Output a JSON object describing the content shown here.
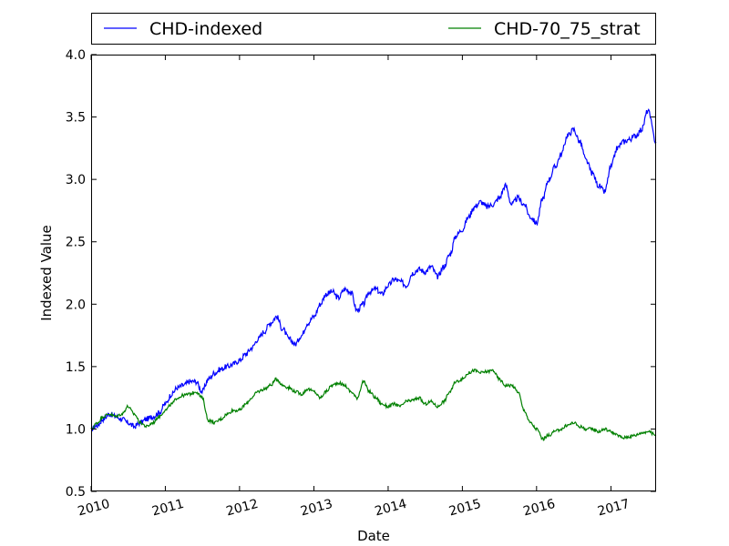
{
  "chart_data": {
    "type": "line",
    "xlabel": "Date",
    "ylabel": "Indexed Value",
    "xlim": [
      "2010-01-01",
      "2017-08-11"
    ],
    "ylim": [
      0.5,
      4.0
    ],
    "x_ticks": [
      "2010",
      "2011",
      "2012",
      "2013",
      "2014",
      "2015",
      "2016",
      "2017"
    ],
    "y_ticks": [
      "0.5",
      "1.0",
      "1.5",
      "2.0",
      "2.5",
      "3.0",
      "3.5",
      "4.0"
    ],
    "x_tick_rotation": "slanted",
    "grid": false,
    "legend": {
      "placement": "top, above plot, two columns"
    },
    "series": [
      {
        "name": "CHD-indexed",
        "color": "#0000ff",
        "x": [
          "2010-01-01",
          "2010-02-01",
          "2010-03-01",
          "2010-04-01",
          "2010-05-01",
          "2010-06-01",
          "2010-07-01",
          "2010-08-01",
          "2010-09-01",
          "2010-10-01",
          "2010-11-01",
          "2010-12-01",
          "2011-01-01",
          "2011-02-01",
          "2011-03-01",
          "2011-04-01",
          "2011-05-01",
          "2011-06-01",
          "2011-07-01",
          "2011-08-01",
          "2011-09-01",
          "2011-10-01",
          "2011-11-01",
          "2011-12-01",
          "2012-01-01",
          "2012-02-01",
          "2012-03-01",
          "2012-04-01",
          "2012-05-01",
          "2012-06-01",
          "2012-07-01",
          "2012-08-01",
          "2012-09-01",
          "2012-10-01",
          "2012-11-01",
          "2012-12-01",
          "2013-01-01",
          "2013-02-01",
          "2013-03-01",
          "2013-04-01",
          "2013-05-01",
          "2013-06-01",
          "2013-07-01",
          "2013-08-01",
          "2013-09-01",
          "2013-10-01",
          "2013-11-01",
          "2013-12-01",
          "2014-01-01",
          "2014-02-01",
          "2014-03-01",
          "2014-04-01",
          "2014-05-01",
          "2014-06-01",
          "2014-07-01",
          "2014-08-01",
          "2014-09-01",
          "2014-10-01",
          "2014-11-01",
          "2014-12-01",
          "2015-01-01",
          "2015-02-01",
          "2015-03-01",
          "2015-04-01",
          "2015-05-01",
          "2015-06-01",
          "2015-07-01",
          "2015-08-01",
          "2015-09-01",
          "2015-10-01",
          "2015-11-01",
          "2015-12-01",
          "2016-01-01",
          "2016-02-01",
          "2016-03-01",
          "2016-04-01",
          "2016-05-01",
          "2016-06-01",
          "2016-07-01",
          "2016-08-01",
          "2016-09-01",
          "2016-10-01",
          "2016-11-01",
          "2016-12-01",
          "2017-01-01",
          "2017-02-01",
          "2017-03-01",
          "2017-04-01",
          "2017-05-01",
          "2017-06-01",
          "2017-07-01",
          "2017-08-11"
        ],
        "y": [
          1.0,
          1.03,
          1.08,
          1.12,
          1.1,
          1.08,
          1.05,
          1.02,
          1.05,
          1.08,
          1.1,
          1.13,
          1.2,
          1.28,
          1.33,
          1.35,
          1.38,
          1.38,
          1.3,
          1.4,
          1.45,
          1.48,
          1.5,
          1.52,
          1.55,
          1.6,
          1.65,
          1.72,
          1.78,
          1.85,
          1.9,
          1.8,
          1.72,
          1.68,
          1.75,
          1.85,
          1.9,
          2.0,
          2.08,
          2.1,
          2.05,
          2.12,
          2.1,
          1.95,
          2.0,
          2.1,
          2.12,
          2.08,
          2.15,
          2.2,
          2.18,
          2.15,
          2.25,
          2.28,
          2.26,
          2.3,
          2.22,
          2.3,
          2.4,
          2.55,
          2.6,
          2.7,
          2.78,
          2.82,
          2.78,
          2.8,
          2.85,
          2.95,
          2.8,
          2.85,
          2.8,
          2.7,
          2.65,
          2.85,
          3.0,
          3.1,
          3.2,
          3.35,
          3.4,
          3.3,
          3.15,
          3.05,
          2.95,
          2.9,
          3.1,
          3.25,
          3.3,
          3.32,
          3.35,
          3.4,
          3.55,
          3.3
        ]
      },
      {
        "name": "CHD-70_75_strat",
        "color": "#008000",
        "x": [
          "2010-01-01",
          "2010-02-01",
          "2010-03-01",
          "2010-04-01",
          "2010-05-01",
          "2010-06-01",
          "2010-07-01",
          "2010-08-01",
          "2010-09-01",
          "2010-10-01",
          "2010-11-01",
          "2010-12-01",
          "2011-01-01",
          "2011-02-01",
          "2011-03-01",
          "2011-04-01",
          "2011-05-01",
          "2011-06-01",
          "2011-07-01",
          "2011-08-01",
          "2011-09-01",
          "2011-10-01",
          "2011-11-01",
          "2011-12-01",
          "2012-01-01",
          "2012-02-01",
          "2012-03-01",
          "2012-04-01",
          "2012-05-01",
          "2012-06-01",
          "2012-07-01",
          "2012-08-01",
          "2012-09-01",
          "2012-10-01",
          "2012-11-01",
          "2012-12-01",
          "2013-01-01",
          "2013-02-01",
          "2013-03-01",
          "2013-04-01",
          "2013-05-01",
          "2013-06-01",
          "2013-07-01",
          "2013-08-01",
          "2013-09-01",
          "2013-10-01",
          "2013-11-01",
          "2013-12-01",
          "2014-01-01",
          "2014-02-01",
          "2014-03-01",
          "2014-04-01",
          "2014-05-01",
          "2014-06-01",
          "2014-07-01",
          "2014-08-01",
          "2014-09-01",
          "2014-10-01",
          "2014-11-01",
          "2014-12-01",
          "2015-01-01",
          "2015-02-01",
          "2015-03-01",
          "2015-04-01",
          "2015-05-01",
          "2015-06-01",
          "2015-07-01",
          "2015-08-01",
          "2015-09-01",
          "2015-10-01",
          "2015-11-01",
          "2015-12-01",
          "2016-01-01",
          "2016-02-01",
          "2016-03-01",
          "2016-04-01",
          "2016-05-01",
          "2016-06-01",
          "2016-07-01",
          "2016-08-01",
          "2016-09-01",
          "2016-10-01",
          "2016-11-01",
          "2016-12-01",
          "2017-01-01",
          "2017-02-01",
          "2017-03-01",
          "2017-04-01",
          "2017-05-01",
          "2017-06-01",
          "2017-07-01",
          "2017-08-11"
        ],
        "y": [
          1.0,
          1.05,
          1.1,
          1.12,
          1.1,
          1.12,
          1.18,
          1.12,
          1.05,
          1.02,
          1.05,
          1.1,
          1.15,
          1.2,
          1.25,
          1.27,
          1.28,
          1.3,
          1.25,
          1.07,
          1.05,
          1.08,
          1.12,
          1.15,
          1.15,
          1.2,
          1.25,
          1.3,
          1.32,
          1.35,
          1.4,
          1.35,
          1.33,
          1.3,
          1.28,
          1.32,
          1.3,
          1.25,
          1.3,
          1.35,
          1.37,
          1.35,
          1.3,
          1.25,
          1.38,
          1.3,
          1.25,
          1.2,
          1.18,
          1.2,
          1.18,
          1.22,
          1.23,
          1.25,
          1.2,
          1.22,
          1.18,
          1.22,
          1.3,
          1.38,
          1.4,
          1.45,
          1.47,
          1.45,
          1.46,
          1.47,
          1.4,
          1.35,
          1.35,
          1.3,
          1.15,
          1.05,
          1.0,
          0.92,
          0.95,
          0.98,
          1.0,
          1.03,
          1.05,
          1.02,
          1.0,
          1.0,
          0.98,
          1.0,
          0.98,
          0.95,
          0.93,
          0.94,
          0.95,
          0.97,
          0.98,
          0.95
        ]
      }
    ]
  }
}
